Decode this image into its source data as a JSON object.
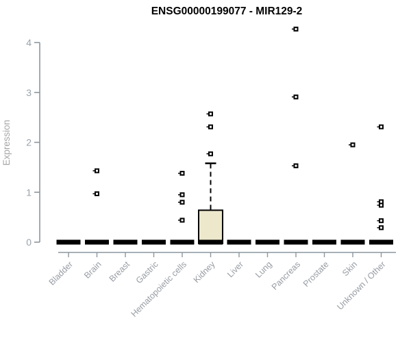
{
  "title": "ENSG00000199077 - MIR129-2",
  "colors": {
    "title": "#000000",
    "axis_line": "#8C969E",
    "tick_label": "#9AA2AA",
    "category_label": "#979CA3",
    "axis_title": "#A6A6A6",
    "box_fill": "#EDE8CC",
    "box_stroke": "#000000",
    "median": "#000000",
    "outlier": "#000000"
  },
  "chart_data": {
    "type": "boxplot",
    "title": "ENSG00000199077 - MIR129-2",
    "xlabel": "",
    "ylabel": "Expression",
    "ylim": [
      0,
      4.3
    ],
    "yticks": [
      "0",
      "1",
      "2",
      "3",
      "4"
    ],
    "grid": false,
    "legend": null,
    "marker_style": "open-square",
    "categories": [
      "Bladder",
      "Brain",
      "Breast",
      "Gastric",
      "Hematopoietic cells",
      "Kidney",
      "Liver",
      "Lung",
      "Pancreas",
      "Prostate",
      "Skin",
      "Unknown / Other"
    ],
    "boxes": [
      {
        "category": "Bladder",
        "q1": 0,
        "median": 0,
        "q3": 0,
        "whisker_low": 0,
        "whisker_high": 0,
        "outliers": []
      },
      {
        "category": "Brain",
        "q1": 0,
        "median": 0,
        "q3": 0,
        "whisker_low": 0,
        "whisker_high": 0,
        "outliers": [
          1.43,
          0.97
        ]
      },
      {
        "category": "Breast",
        "q1": 0,
        "median": 0,
        "q3": 0,
        "whisker_low": 0,
        "whisker_high": 0,
        "outliers": []
      },
      {
        "category": "Gastric",
        "q1": 0,
        "median": 0,
        "q3": 0,
        "whisker_low": 0,
        "whisker_high": 0,
        "outliers": []
      },
      {
        "category": "Hematopoietic cells",
        "q1": 0,
        "median": 0,
        "q3": 0,
        "whisker_low": 0,
        "whisker_high": 0,
        "outliers": [
          1.38,
          0.95,
          0.8,
          0.44
        ]
      },
      {
        "category": "Kidney",
        "q1": 0,
        "median": 0,
        "q3": 0.64,
        "whisker_low": 0,
        "whisker_high": 1.58,
        "outliers": [
          2.57,
          2.31,
          1.77
        ]
      },
      {
        "category": "Liver",
        "q1": 0,
        "median": 0,
        "q3": 0,
        "whisker_low": 0,
        "whisker_high": 0,
        "outliers": []
      },
      {
        "category": "Lung",
        "q1": 0,
        "median": 0,
        "q3": 0,
        "whisker_low": 0,
        "whisker_high": 0,
        "outliers": []
      },
      {
        "category": "Pancreas",
        "q1": 0,
        "median": 0,
        "q3": 0,
        "whisker_low": 0,
        "whisker_high": 0,
        "outliers": [
          4.27,
          2.91,
          1.53
        ]
      },
      {
        "category": "Prostate",
        "q1": 0,
        "median": 0,
        "q3": 0,
        "whisker_low": 0,
        "whisker_high": 0,
        "outliers": []
      },
      {
        "category": "Skin",
        "q1": 0,
        "median": 0,
        "q3": 0,
        "whisker_low": 0,
        "whisker_high": 0,
        "outliers": [
          1.95
        ]
      },
      {
        "category": "Unknown / Other",
        "q1": 0,
        "median": 0,
        "q3": 0,
        "whisker_low": 0,
        "whisker_high": 0,
        "outliers": [
          2.31,
          0.81,
          0.74,
          0.43,
          0.29
        ]
      }
    ]
  }
}
